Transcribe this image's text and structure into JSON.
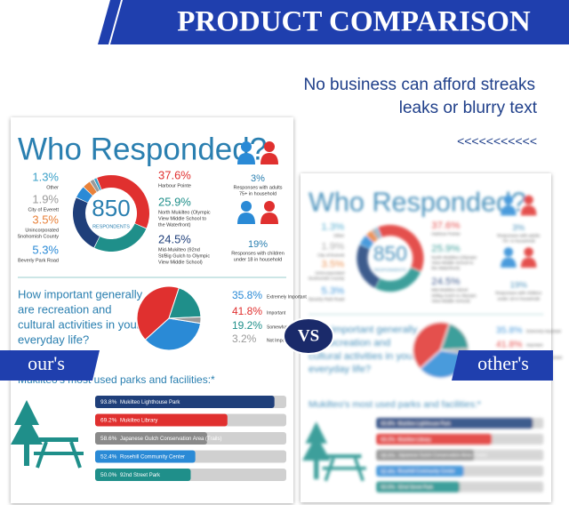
{
  "banner": {
    "title": "PRODUCT COMPARISON"
  },
  "tagline": {
    "lines": [
      "No business can afford streaks",
      "leaks or blurry text"
    ],
    "arrows": "<<<<<<<<<<<"
  },
  "infographic": {
    "title": "Who Responded?",
    "total": {
      "value": 850,
      "label": "RESPONDENTS"
    },
    "areas": [
      {
        "label": "37.6%",
        "value": 37.6,
        "name": [
          "Harbour Pointe"
        ],
        "color": "#e0302f",
        "side": "right"
      },
      {
        "label": "25.9%",
        "value": 25.9,
        "name": [
          "North Mukilteo (Olympic",
          "View Middle School to",
          "the Waterfront)"
        ],
        "color": "#1f8f8a",
        "side": "right"
      },
      {
        "label": "24.5%",
        "value": 24.5,
        "name": [
          "Mid-Mukilteo (92nd",
          "St/Big Gulch to Olympic",
          "View Middle School)"
        ],
        "color": "#1f3f7a",
        "side": "right"
      },
      {
        "label": "5.3%",
        "value": 5.3,
        "name": [
          "Beverly Park Road"
        ],
        "color": "#2a8ad6",
        "side": "left"
      },
      {
        "label": "3.5%",
        "value": 3.5,
        "name": [
          "Unincorporated",
          "Snohomish County"
        ],
        "color": "#e8813a",
        "side": "left"
      },
      {
        "label": "1.9%",
        "value": 1.9,
        "name": [
          "City of Everett"
        ],
        "color": "#9a9a9a",
        "side": "left"
      },
      {
        "label": "1.3%",
        "value": 1.3,
        "name": [
          "Other"
        ],
        "color": "#3aa0c8",
        "side": "left"
      }
    ],
    "households": [
      {
        "label": "3%",
        "text": [
          "Responses with adults",
          "75+ in household"
        ]
      },
      {
        "label": "19%",
        "text": [
          "Responses with children",
          "under 18 in household"
        ]
      }
    ],
    "question": [
      "How important generally",
      "are recreation and",
      "cultural activities in your",
      "everyday life?"
    ],
    "importance": [
      {
        "label": "35.8%",
        "value": 35.8,
        "name": "Extremely Important",
        "color": "#2a8ad6"
      },
      {
        "label": "41.8%",
        "value": 41.8,
        "name": "Important",
        "color": "#e0302f"
      },
      {
        "label": "19.2%",
        "value": 19.2,
        "name": "Somewhat Important",
        "color": "#1f8f8a"
      },
      {
        "label": "3.2%",
        "value": 3.2,
        "name": "Not Important",
        "color": "#9a9a9a"
      }
    ],
    "parks_title": "Mukilteo's most used parks and facilities:*",
    "parks": [
      {
        "label": "93.8%",
        "value": 93.8,
        "name": "Mukilteo Lighthouse Park",
        "color": "#1f3f7a"
      },
      {
        "label": "69.2%",
        "value": 69.2,
        "name": "Mukilteo Library",
        "color": "#e0302f"
      },
      {
        "label": "58.6%",
        "value": 58.6,
        "name": "Japanese Gulch Conservation Area (Trails)",
        "color": "#8a8a8a"
      },
      {
        "label": "52.4%",
        "value": 52.4,
        "name": "Rosehill Community Center",
        "color": "#2a8ad6"
      },
      {
        "label": "50.0%",
        "value": 50.0,
        "name": "92nd Street Park",
        "color": "#1f8f8a"
      }
    ]
  },
  "badges": {
    "vs": "VS",
    "ours": "our's",
    "others": "other's"
  }
}
